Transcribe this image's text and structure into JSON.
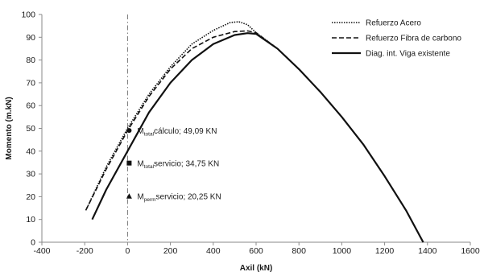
{
  "chart_data": {
    "type": "line",
    "title": "",
    "xlabel": "Axil (kN)",
    "ylabel": "Momento (m.kN)",
    "xlim": [
      -400,
      1600
    ],
    "ylim": [
      0,
      100
    ],
    "xticks": [
      -400,
      -200,
      0,
      200,
      400,
      600,
      800,
      1000,
      1200,
      1400,
      1600
    ],
    "yticks": [
      0,
      10,
      20,
      30,
      40,
      50,
      60,
      70,
      80,
      90,
      100
    ],
    "grid": false,
    "legend_position": "top-right",
    "vertical_reference_x": 0,
    "series": [
      {
        "name": "Refuerzo Acero",
        "style": "dotted",
        "color": "#111111",
        "points": [
          [
            -190,
            15
          ],
          [
            -100,
            33
          ],
          [
            0,
            50
          ],
          [
            100,
            65
          ],
          [
            200,
            77
          ],
          [
            300,
            87
          ],
          [
            400,
            93
          ],
          [
            480,
            96.5
          ],
          [
            520,
            96.8
          ],
          [
            560,
            95.5
          ],
          [
            600,
            92
          ],
          [
            700,
            85
          ],
          [
            800,
            76
          ],
          [
            900,
            66
          ],
          [
            1000,
            55
          ],
          [
            1100,
            43
          ],
          [
            1200,
            29
          ],
          [
            1300,
            14
          ],
          [
            1380,
            0
          ]
        ]
      },
      {
        "name": "Refuerzo Fibra de carbono",
        "style": "dashed",
        "color": "#111111",
        "points": [
          [
            -195,
            14
          ],
          [
            -100,
            32
          ],
          [
            0,
            49
          ],
          [
            100,
            64
          ],
          [
            200,
            76
          ],
          [
            300,
            85
          ],
          [
            400,
            90
          ],
          [
            500,
            92.5
          ],
          [
            560,
            92.8
          ],
          [
            600,
            92
          ],
          [
            700,
            85
          ],
          [
            800,
            76
          ],
          [
            900,
            66
          ],
          [
            1000,
            55
          ],
          [
            1100,
            43
          ],
          [
            1200,
            29
          ],
          [
            1300,
            14
          ],
          [
            1380,
            0
          ]
        ]
      },
      {
        "name": "Diag. int. Viga existente",
        "style": "solid",
        "color": "#111111",
        "points": [
          [
            -165,
            10
          ],
          [
            -100,
            23
          ],
          [
            0,
            40
          ],
          [
            100,
            57
          ],
          [
            200,
            70
          ],
          [
            300,
            80
          ],
          [
            400,
            87
          ],
          [
            500,
            91
          ],
          [
            560,
            91.8
          ],
          [
            600,
            91.5
          ],
          [
            700,
            85
          ],
          [
            800,
            76
          ],
          [
            900,
            66
          ],
          [
            1000,
            55
          ],
          [
            1100,
            43
          ],
          [
            1200,
            29
          ],
          [
            1300,
            14
          ],
          [
            1380,
            0
          ]
        ]
      }
    ],
    "annotations": [
      {
        "marker": "circle",
        "x": 0,
        "y": 49.09,
        "label_main": "M",
        "label_sub": "total",
        "label_rest": "cálculo; 49,09 KN"
      },
      {
        "marker": "square",
        "x": 0,
        "y": 34.75,
        "label_main": "M",
        "label_sub": "total",
        "label_rest": "servicio; 34,75 KN"
      },
      {
        "marker": "triangle",
        "x": 0,
        "y": 20.25,
        "label_main": "M",
        "label_sub": "perm",
        "label_rest": "servicio; 20,25 KN"
      }
    ]
  }
}
